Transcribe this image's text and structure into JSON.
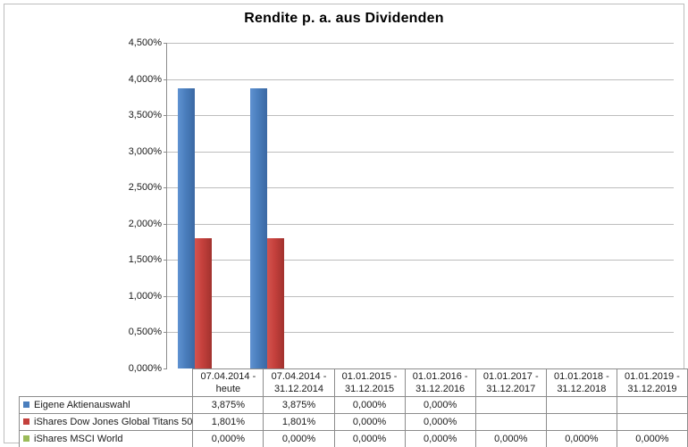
{
  "chart_data": {
    "type": "bar",
    "title": "Rendite p. a. aus Dividenden",
    "xlabel": "",
    "ylabel": "",
    "ylim": [
      0,
      4.5
    ],
    "grid": true,
    "legend_position": "table-left",
    "value_suffix": "%",
    "y_tick_labels_top_to_bottom": [
      "4,500%",
      "4,000%",
      "3,500%",
      "3,000%",
      "2,500%",
      "2,000%",
      "1,500%",
      "1,000%",
      "0,500%",
      "0,000%"
    ],
    "categories": [
      "07.04.2014 -\nheute",
      "07.04.2014 -\n31.12.2014",
      "01.01.2015 -\n31.12.2015",
      "01.01.2016 -\n31.12.2016",
      "01.01.2017 -\n31.12.2017",
      "01.01.2018 -\n31.12.2018",
      "01.01.2019 -\n31.12.2019"
    ],
    "series": [
      {
        "name": "Eigene Aktienauswahl",
        "color": "#4a7ebd",
        "color_light": "#5f92d1",
        "color_dark": "#3b68a3",
        "values": [
          3.875,
          3.875,
          0,
          0,
          null,
          null,
          null
        ],
        "labels": [
          "3,875%",
          "3,875%",
          "0,000%",
          "0,000%",
          "",
          "",
          ""
        ]
      },
      {
        "name": "iShares Dow Jones Global Titans 50",
        "color": "#c4403c",
        "color_light": "#d4544f",
        "color_dark": "#a1322e",
        "values": [
          1.801,
          1.801,
          0,
          0,
          null,
          null,
          null
        ],
        "labels": [
          "1,801%",
          "1,801%",
          "0,000%",
          "0,000%",
          "",
          "",
          ""
        ]
      },
      {
        "name": "iShares MSCI World",
        "color": "#9bbb59",
        "color_light": "#aac86c",
        "color_dark": "#82a144",
        "values": [
          0,
          0,
          0,
          0,
          0,
          0,
          0
        ],
        "labels": [
          "0,000%",
          "0,000%",
          "0,000%",
          "0,000%",
          "0,000%",
          "0,000%",
          "0,000%"
        ]
      }
    ]
  }
}
